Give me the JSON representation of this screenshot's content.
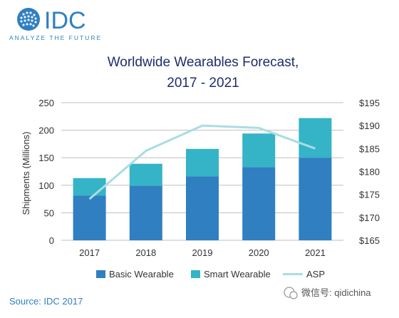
{
  "logo": {
    "text": "IDC",
    "tagline": "ANALYZE THE FUTURE"
  },
  "colors": {
    "basic": "#2F7FC1",
    "smart": "#35B3C7",
    "asp": "#A9DDE3",
    "title": "#1F2D6B",
    "axis_text": "#333333",
    "grid": "#BFBFBF"
  },
  "chart_data": {
    "type": "bar",
    "stacked": true,
    "title": "Worldwide Wearables Forecast,",
    "subtitle": "2017 - 2021",
    "categories": [
      "2017",
      "2018",
      "2019",
      "2020",
      "2021"
    ],
    "ylabel": "Shipments (Millions)",
    "ylim": [
      0,
      250
    ],
    "yticks": [
      "0",
      "50",
      "100",
      "150",
      "200",
      "250"
    ],
    "y2lim": [
      165,
      195
    ],
    "y2ticks": [
      "$165",
      "$170",
      "$175",
      "$180",
      "$185",
      "$190",
      "$195"
    ],
    "series": [
      {
        "name": "Basic Wearable",
        "type": "bar",
        "values": [
          81,
          99,
          116,
          133,
          150
        ]
      },
      {
        "name": "Smart Wearable",
        "type": "bar",
        "values": [
          32,
          40,
          50,
          61,
          72
        ]
      },
      {
        "name": "ASP",
        "type": "line",
        "axis": "right",
        "values": [
          174,
          184.5,
          190,
          189.5,
          185
        ]
      }
    ],
    "grid": true,
    "legend": "bottom"
  },
  "footer": {
    "source": "Source: IDC 2017",
    "wechat": "微信号: qidichina"
  }
}
